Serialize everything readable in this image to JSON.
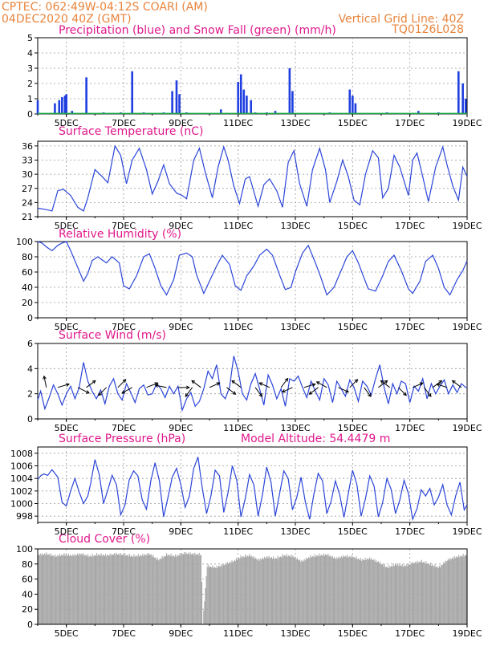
{
  "header": {
    "line1": "CPTEC:   062:49W-04:12S   COARI (AM)",
    "line2": "04DEC2020 40Z (GMT)",
    "right1": "Vertical Grid Line: 40Z",
    "right2": "TQ0126L028"
  },
  "colors": {
    "header": "#e8843c",
    "title": "#e0188c",
    "line": "#2b45d8",
    "precip": "#1f3fe0",
    "snow": "#1ea84a",
    "cloud": "#a8a8a8",
    "arrow": "#000000",
    "grid": "#9a9a9a"
  },
  "x_axis_labels": [
    "5DEC",
    "7DEC",
    "9DEC",
    "11DEC",
    "13DEC",
    "15DEC",
    "17DEC",
    "19DEC"
  ],
  "panels": {
    "precip": {
      "title": "Precipitation (blue) and Snow Fall (green) (mm/h)",
      "yticks": [
        "0",
        "1",
        "2",
        "3",
        "4",
        "5"
      ]
    },
    "temp": {
      "title": "Surface Temperature (nC)",
      "yticks": [
        "21",
        "24",
        "27",
        "30",
        "33",
        "36"
      ]
    },
    "rh": {
      "title": "Relative Humidity (%)",
      "yticks": [
        "0",
        "20",
        "40",
        "60",
        "80",
        "100"
      ]
    },
    "wind": {
      "title": "Surface Wind (m/s)",
      "yticks": [
        "0",
        "2",
        "4",
        "6"
      ]
    },
    "pressure": {
      "title": "Surface Pressure (hPa)",
      "subtitle": "Model Altitude: 54.4479 m",
      "yticks": [
        "998",
        "1000",
        "1002",
        "1004",
        "1006",
        "1008"
      ]
    },
    "cloud": {
      "title": "Cloud Cover (%)",
      "yticks": [
        "0",
        "20",
        "40",
        "60",
        "80",
        "100"
      ]
    }
  },
  "chart_data": [
    {
      "type": "bar",
      "title": "Precipitation (blue) and Snow Fall (green) (mm/h)",
      "x_range": [
        "04DEC2020",
        "19DEC2020"
      ],
      "ylim": [
        0,
        5
      ],
      "series": [
        {
          "name": "Precipitation",
          "x_day": [
            4.0,
            4.6,
            4.75,
            4.85,
            4.95,
            5.0,
            5.2,
            5.7,
            6.3,
            6.9,
            7.3,
            7.7,
            8.4,
            8.7,
            8.85,
            8.95,
            9.2,
            10.4,
            11.0,
            11.1,
            11.2,
            11.3,
            11.45,
            11.6,
            12.0,
            12.3,
            12.8,
            12.9,
            14.2,
            14.9,
            15.0,
            15.1,
            16.2,
            17.3,
            18.0,
            18.7,
            18.85,
            18.95
          ],
          "values": [
            0.9,
            0.7,
            0.9,
            1.1,
            1.2,
            1.3,
            0.2,
            2.4,
            0.1,
            0.1,
            2.8,
            0.1,
            0.1,
            1.5,
            2.2,
            1.3,
            0.1,
            0.3,
            2.1,
            2.6,
            1.6,
            1.2,
            0.9,
            0.1,
            0.1,
            0.2,
            3.0,
            1.5,
            0.1,
            1.6,
            1.2,
            0.7,
            0.1,
            0.2,
            0.1,
            2.8,
            2.0,
            1.0
          ]
        },
        {
          "name": "Snow Fall",
          "values": [
            0
          ]
        }
      ]
    },
    {
      "type": "line",
      "title": "Surface Temperature (nC)",
      "ylim": [
        21,
        37
      ],
      "x_day": [
        4.0,
        4.3,
        4.5,
        4.7,
        4.9,
        5.15,
        5.4,
        5.6,
        5.75,
        6.0,
        6.25,
        6.45,
        6.7,
        6.9,
        7.1,
        7.3,
        7.55,
        7.8,
        8.0,
        8.2,
        8.4,
        8.6,
        8.85,
        9.05,
        9.2,
        9.45,
        9.65,
        9.85,
        10.1,
        10.3,
        10.5,
        10.65,
        10.85,
        11.05,
        11.25,
        11.4,
        11.7,
        11.9,
        12.1,
        12.35,
        12.55,
        12.75,
        12.95,
        13.15,
        13.4,
        13.6,
        13.85,
        14.05,
        14.2,
        14.45,
        14.65,
        14.85,
        15.05,
        15.25,
        15.45,
        15.7,
        15.9,
        16.05,
        16.25,
        16.45,
        16.65,
        16.95,
        17.1,
        17.25,
        17.45,
        17.65,
        17.9,
        18.15,
        18.3,
        18.5,
        18.7,
        18.85,
        19.0
      ],
      "y": [
        22.8,
        22.5,
        22.2,
        26.5,
        26.8,
        25.5,
        23.0,
        22.2,
        25.0,
        31.0,
        29.5,
        28.2,
        36.0,
        34.0,
        28.0,
        33.0,
        35.5,
        31.0,
        25.8,
        28.5,
        32.0,
        28.0,
        26.0,
        25.5,
        24.8,
        33.0,
        35.5,
        30.5,
        25.0,
        31.5,
        35.8,
        33.0,
        27.5,
        23.8,
        29.0,
        29.5,
        23.2,
        27.8,
        29.0,
        26.5,
        23.0,
        32.5,
        35.0,
        28.0,
        23.2,
        31.0,
        35.5,
        31.0,
        24.0,
        28.5,
        33.0,
        29.5,
        24.5,
        23.5,
        30.0,
        35.0,
        33.5,
        25.0,
        27.0,
        34.0,
        31.5,
        25.5,
        33.0,
        34.5,
        29.5,
        24.2,
        31.5,
        35.8,
        32.0,
        27.5,
        24.5,
        31.5,
        29.5
      ]
    },
    {
      "type": "line",
      "title": "Relative Humidity (%)",
      "ylim": [
        0,
        100
      ],
      "x_day": [
        4.0,
        4.15,
        4.3,
        4.5,
        4.7,
        4.85,
        5.0,
        5.15,
        5.4,
        5.6,
        5.75,
        5.9,
        6.1,
        6.4,
        6.6,
        6.85,
        7.0,
        7.2,
        7.45,
        7.7,
        7.9,
        8.1,
        8.3,
        8.5,
        8.75,
        8.95,
        9.2,
        9.4,
        9.55,
        9.8,
        10.0,
        10.25,
        10.45,
        10.7,
        10.9,
        11.1,
        11.3,
        11.55,
        11.75,
        12.0,
        12.2,
        12.45,
        12.65,
        12.85,
        13.0,
        13.25,
        13.45,
        13.7,
        13.9,
        14.1,
        14.35,
        14.6,
        14.8,
        15.0,
        15.2,
        15.4,
        15.55,
        15.8,
        16.05,
        16.25,
        16.45,
        16.7,
        16.95,
        17.1,
        17.35,
        17.55,
        17.8,
        18.0,
        18.2,
        18.4,
        18.65,
        18.85,
        19.0
      ],
      "y": [
        100,
        98,
        93,
        88,
        95,
        98,
        100,
        88,
        66,
        48,
        58,
        75,
        80,
        72,
        80,
        72,
        42,
        38,
        55,
        80,
        84,
        65,
        42,
        30,
        50,
        82,
        85,
        80,
        56,
        32,
        48,
        68,
        82,
        70,
        42,
        36,
        55,
        68,
        82,
        90,
        82,
        56,
        37,
        40,
        60,
        85,
        95,
        72,
        52,
        30,
        40,
        62,
        80,
        88,
        72,
        52,
        38,
        35,
        55,
        74,
        82,
        62,
        38,
        32,
        48,
        74,
        82,
        65,
        40,
        30,
        50,
        62,
        75
      ]
    },
    {
      "type": "line",
      "title": "Surface Wind (m/s)",
      "ylim": [
        0,
        6
      ],
      "x_day": [
        4.0,
        4.1,
        4.25,
        4.4,
        4.55,
        4.7,
        4.85,
        5.0,
        5.15,
        5.3,
        5.45,
        5.6,
        5.75,
        5.9,
        6.05,
        6.2,
        6.35,
        6.5,
        6.65,
        6.8,
        6.95,
        7.1,
        7.25,
        7.4,
        7.55,
        7.7,
        7.85,
        8.0,
        8.15,
        8.3,
        8.45,
        8.6,
        8.75,
        8.9,
        9.05,
        9.2,
        9.35,
        9.5,
        9.65,
        9.8,
        9.95,
        10.1,
        10.25,
        10.4,
        10.55,
        10.7,
        10.85,
        11.0,
        11.15,
        11.3,
        11.45,
        11.6,
        11.75,
        11.9,
        12.05,
        12.2,
        12.35,
        12.5,
        12.65,
        12.8,
        12.95,
        13.1,
        13.25,
        13.4,
        13.55,
        13.7,
        13.85,
        14.0,
        14.15,
        14.3,
        14.45,
        14.6,
        14.75,
        14.9,
        15.05,
        15.2,
        15.35,
        15.5,
        15.65,
        15.8,
        15.95,
        16.1,
        16.25,
        16.4,
        16.55,
        16.7,
        16.85,
        17.0,
        17.15,
        17.3,
        17.45,
        17.6,
        17.75,
        17.9,
        18.05,
        18.2,
        18.35,
        18.5,
        18.65,
        18.8,
        18.95,
        19.0
      ],
      "y": [
        1.5,
        2.2,
        0.8,
        1.7,
        2.7,
        2.0,
        1.1,
        2.0,
        2.6,
        1.6,
        2.5,
        4.5,
        3.0,
        2.2,
        1.6,
        2.3,
        1.2,
        2.6,
        3.2,
        2.0,
        1.5,
        2.8,
        2.1,
        1.3,
        2.4,
        2.7,
        1.9,
        2.0,
        2.8,
        2.4,
        1.7,
        2.6,
        2.0,
        2.6,
        0.7,
        1.6,
        2.1,
        1.0,
        1.4,
        2.4,
        3.8,
        3.2,
        4.3,
        2.0,
        1.6,
        2.5,
        5.0,
        3.8,
        2.0,
        1.5,
        2.8,
        3.6,
        2.4,
        1.1,
        3.5,
        2.7,
        1.6,
        2.4,
        1.0,
        3.2,
        3.0,
        3.4,
        2.5,
        1.7,
        3.0,
        2.2,
        1.5,
        3.2,
        2.7,
        1.3,
        3.0,
        2.4,
        1.8,
        3.1,
        2.5,
        1.4,
        3.0,
        2.6,
        1.9,
        3.2,
        4.3,
        2.5,
        1.2,
        2.8,
        2.0,
        3.0,
        2.8,
        1.3,
        2.6,
        2.2,
        3.2,
        1.6,
        2.8,
        2.0,
        2.6,
        3.1,
        2.0,
        2.7,
        2.1,
        2.8,
        2.5,
        2.5
      ],
      "arrows": {
        "x_day": [
          4.3,
          4.7,
          5.4,
          5.7,
          6.4,
          6.8,
          7.3,
          7.8,
          8.5,
          8.9,
          9.4,
          9.7,
          10.0,
          10.6,
          11.1,
          11.6,
          12.1,
          12.5,
          12.9,
          13.3,
          13.8,
          14.1,
          14.5,
          14.9,
          15.4,
          15.9,
          16.3,
          16.6,
          17.1,
          17.5,
          17.8,
          18.3,
          18.8
        ],
        "u": [
          -0.2,
          1.0,
          1.0,
          0.8,
          -0.7,
          0.7,
          -0.9,
          1.0,
          -1.0,
          1.0,
          -0.6,
          -0.8,
          0.9,
          0.8,
          -0.8,
          0.6,
          -0.9,
          0.6,
          -0.9,
          1.0,
          -0.8,
          -0.9,
          0.9,
          0.7,
          0.6,
          0.8,
          -0.8,
          0.7,
          0.9,
          0.6,
          0.8,
          -0.9,
          -0.8
        ],
        "v": [
          1.0,
          0.3,
          -0.5,
          0.6,
          -0.7,
          0.7,
          -0.5,
          0.4,
          0.2,
          0.0,
          -0.8,
          0.6,
          0.4,
          -0.6,
          0.6,
          -0.8,
          0.4,
          0.8,
          -0.4,
          0.3,
          -0.6,
          0.5,
          -0.4,
          0.7,
          -0.8,
          0.6,
          0.6,
          -0.7,
          0.4,
          -0.8,
          0.6,
          0.3,
          0.6
        ]
      }
    },
    {
      "type": "line",
      "title": "Surface Pressure (hPa)",
      "subtitle": "Model Altitude: 54.4479 m",
      "ylim": [
        997,
        1009
      ],
      "x_day": [
        4.0,
        4.1,
        4.2,
        4.35,
        4.5,
        4.7,
        4.85,
        5.0,
        5.15,
        5.3,
        5.45,
        5.6,
        5.75,
        5.85,
        6.0,
        6.15,
        6.3,
        6.45,
        6.6,
        6.75,
        6.9,
        7.05,
        7.2,
        7.35,
        7.5,
        7.65,
        7.8,
        7.95,
        8.1,
        8.25,
        8.4,
        8.55,
        8.7,
        8.85,
        9.0,
        9.15,
        9.3,
        9.45,
        9.6,
        9.75,
        9.9,
        10.05,
        10.2,
        10.35,
        10.5,
        10.65,
        10.8,
        10.95,
        11.1,
        11.25,
        11.4,
        11.55,
        11.7,
        11.85,
        12.0,
        12.15,
        12.3,
        12.45,
        12.6,
        12.75,
        12.9,
        13.05,
        13.2,
        13.35,
        13.5,
        13.65,
        13.8,
        13.95,
        14.1,
        14.25,
        14.4,
        14.55,
        14.7,
        14.85,
        15.0,
        15.15,
        15.3,
        15.45,
        15.6,
        15.75,
        15.9,
        16.05,
        16.2,
        16.35,
        16.5,
        16.65,
        16.8,
        16.95,
        17.1,
        17.25,
        17.4,
        17.55,
        17.7,
        17.85,
        18.0,
        18.15,
        18.3,
        18.45,
        18.6,
        18.75,
        18.9,
        19.0
      ],
      "y": [
        1003.8,
        1004.4,
        1004.7,
        1004.5,
        1005.4,
        1004.2,
        1000.2,
        999.6,
        1002.0,
        1004.0,
        1001.8,
        1000.0,
        1001.2,
        1003.2,
        1007.0,
        1004.6,
        1000.0,
        1002.2,
        1004.5,
        1003.0,
        998.2,
        999.8,
        1003.8,
        1005.2,
        1004.4,
        1000.6,
        999.1,
        1003.6,
        1006.5,
        1003.6,
        997.9,
        1001.0,
        1004.2,
        1005.6,
        1003.0,
        999.4,
        1001.2,
        1005.6,
        1007.4,
        1002.4,
        998.4,
        1001.2,
        1005.3,
        1004.4,
        998.6,
        1001.8,
        1006.0,
        1003.8,
        997.9,
        1000.8,
        1004.6,
        1003.0,
        998.0,
        1001.4,
        1005.8,
        1003.4,
        998.0,
        1001.6,
        1005.2,
        1004.0,
        999.0,
        1001.0,
        1004.2,
        1000.2,
        997.5,
        1001.6,
        1004.8,
        1003.6,
        998.4,
        1000.4,
        1003.6,
        1001.4,
        997.8,
        1001.6,
        1005.3,
        1003.0,
        998.0,
        1000.8,
        1004.4,
        1002.8,
        997.9,
        1000.2,
        1004.0,
        1002.2,
        998.4,
        1000.6,
        1003.7,
        1001.6,
        997.5,
        999.2,
        1002.2,
        1001.2,
        1002.4,
        999.8,
        1001.0,
        1003.0,
        999.8,
        998.2,
        1001.2,
        1003.4,
        999.0,
        999.8
      ]
    },
    {
      "type": "area",
      "title": "Cloud Cover (%)",
      "ylim": [
        0,
        100
      ],
      "x_day": [
        4.0,
        4.3,
        4.6,
        4.9,
        5.2,
        5.5,
        5.8,
        6.1,
        6.4,
        6.7,
        7.0,
        7.3,
        7.6,
        7.9,
        8.2,
        8.5,
        8.8,
        9.1,
        9.4,
        9.7,
        9.75,
        9.9,
        10.2,
        10.5,
        10.8,
        11.1,
        11.4,
        11.7,
        12.0,
        12.3,
        12.6,
        12.9,
        13.2,
        13.5,
        13.8,
        14.1,
        14.4,
        14.7,
        15.0,
        15.3,
        15.6,
        15.9,
        16.2,
        16.5,
        16.8,
        17.1,
        17.4,
        17.7,
        18.0,
        18.3,
        18.6,
        18.9,
        19.0
      ],
      "y": [
        95,
        96,
        93,
        95,
        94,
        96,
        93,
        95,
        94,
        96,
        95,
        93,
        94,
        96,
        88,
        95,
        93,
        97,
        96,
        95,
        2,
        80,
        78,
        82,
        86,
        92,
        94,
        88,
        92,
        90,
        94,
        93,
        86,
        92,
        94,
        95,
        90,
        93,
        92,
        88,
        90,
        85,
        78,
        82,
        80,
        84,
        86,
        82,
        78,
        88,
        92,
        94,
        95
      ]
    }
  ]
}
